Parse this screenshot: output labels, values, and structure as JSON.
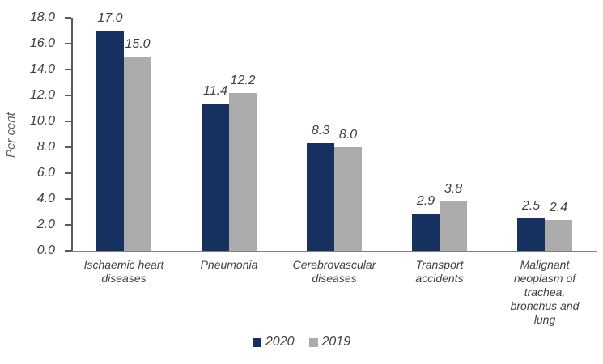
{
  "chart_data": {
    "type": "bar",
    "title": "",
    "ylabel": "Per cent",
    "ylim": [
      0,
      18
    ],
    "ytick_step": 2,
    "ytick_decimals": 1,
    "grid": false,
    "value_labels": true,
    "legend_position": "bottom-center",
    "categories": [
      {
        "label": "Ischaemic heart diseases",
        "lines": [
          "Ischaemic heart",
          "diseases"
        ]
      },
      {
        "label": "Pneumonia",
        "lines": [
          "Pneumonia"
        ]
      },
      {
        "label": "Cerebrovascular diseases",
        "lines": [
          "Cerebrovascular",
          "diseases"
        ]
      },
      {
        "label": "Transport accidents",
        "lines": [
          "Transport",
          "accidents"
        ]
      },
      {
        "label": "Malignant neoplasm of trachea, bronchus and lung",
        "lines": [
          "Malignant",
          "neoplasm of",
          "trachea,",
          "bronchus and",
          "lung"
        ]
      }
    ],
    "series": [
      {
        "name": "2020",
        "color": "#16305F",
        "values": [
          17.0,
          11.4,
          8.3,
          2.9,
          2.5
        ]
      },
      {
        "name": "2019",
        "color": "#ACACAC",
        "values": [
          15.0,
          12.2,
          8.0,
          3.8,
          2.4
        ]
      }
    ]
  },
  "colors": {
    "axis": "#595959",
    "baseline": "#808080",
    "text": "#404040"
  }
}
